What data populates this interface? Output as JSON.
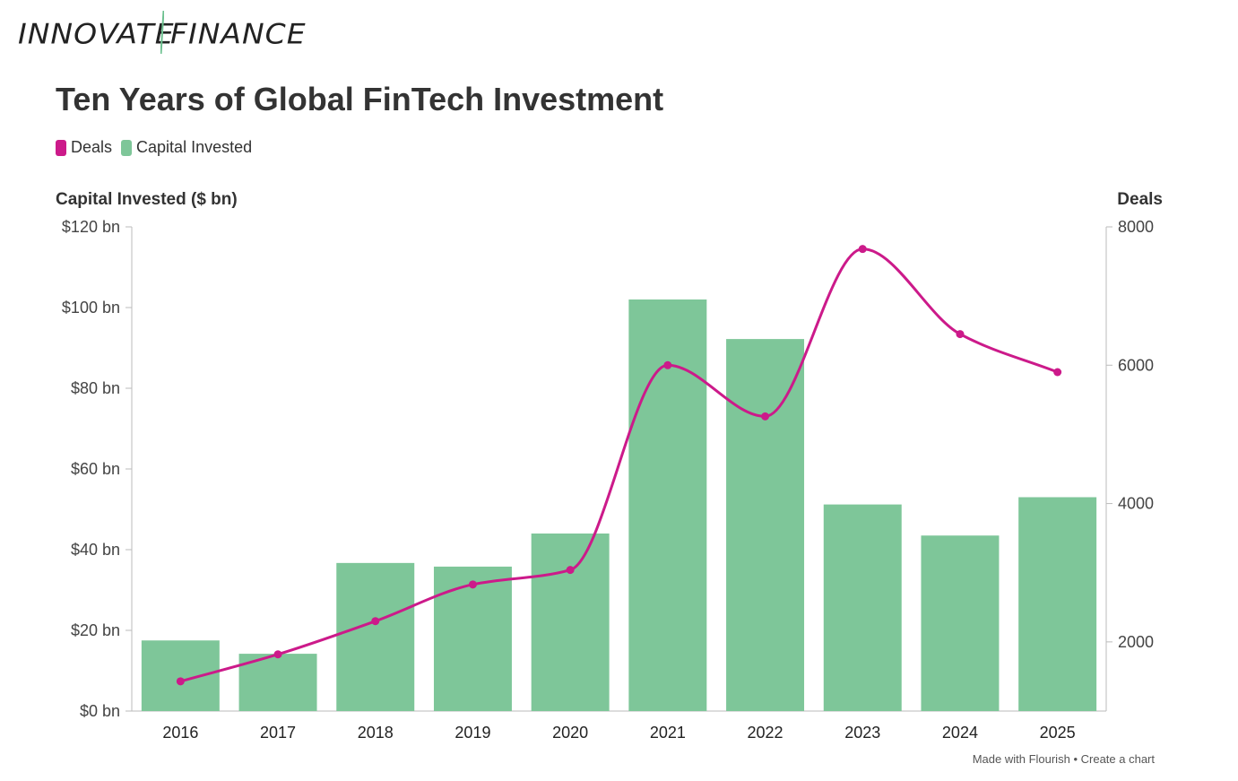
{
  "logo": {
    "left_text": "INNOVATE",
    "right_text": "FINANCE",
    "slash_color": "#6cc08f"
  },
  "footer": {
    "made_with": "Made with Flourish",
    "separator": "•",
    "create": "Create a chart"
  },
  "colors": {
    "deals": "#cc1a8a",
    "capital": "#7ec699",
    "axis": "#bbbbbb",
    "text": "#333333"
  },
  "chart_data": {
    "type": "bar",
    "title": "Ten Years of Global FinTech Investment",
    "legend": [
      "Deals",
      "Capital Invested"
    ],
    "categories": [
      "2016",
      "2017",
      "2018",
      "2019",
      "2020",
      "2021",
      "2022",
      "2023",
      "2024",
      "2025"
    ],
    "series": [
      {
        "name": "Capital Invested",
        "type": "bar",
        "axis": "left",
        "values": [
          17.5,
          14.2,
          36.7,
          35.8,
          44.0,
          102.0,
          92.2,
          51.2,
          43.5,
          53.0
        ]
      },
      {
        "name": "Deals",
        "type": "line",
        "axis": "right",
        "values": [
          1430,
          1820,
          2300,
          2830,
          3040,
          6000,
          5260,
          7680,
          6450,
          5900
        ]
      }
    ],
    "left_axis": {
      "label": "Capital Invested ($ bn)",
      "min": 0,
      "max": 120,
      "ticks": [
        0,
        20,
        40,
        60,
        80,
        100,
        120
      ],
      "tick_labels": [
        "$0 bn",
        "$20 bn",
        "$40 bn",
        "$60 bn",
        "$80 bn",
        "$100 bn",
        "$120 bn"
      ]
    },
    "right_axis": {
      "label": "Deals",
      "min": 1000,
      "max": 8000,
      "ticks": [
        2000,
        4000,
        6000,
        8000
      ],
      "tick_labels": [
        "2000",
        "4000",
        "6000",
        "8000"
      ]
    }
  }
}
